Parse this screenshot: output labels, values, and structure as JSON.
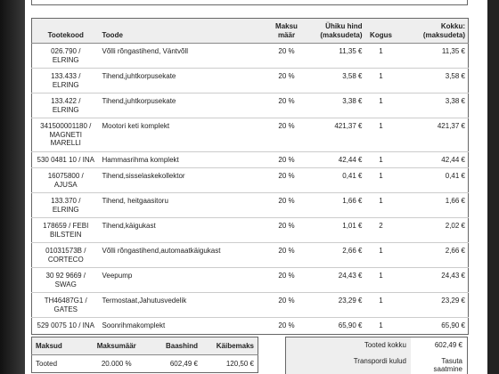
{
  "table": {
    "headers": [
      [
        "Tootekood"
      ],
      [
        "Toode"
      ],
      [
        "Maksu",
        "määr"
      ],
      [
        "Ühiku hind",
        "(maksudeta)"
      ],
      [
        "Kogus"
      ],
      [
        "Kokku:",
        "(maksudeta)"
      ]
    ],
    "rows": [
      {
        "code": [
          "026.790 /",
          "ELRING"
        ],
        "name": "Võlli rõngastihend, Väntvõll",
        "tax": "20 %",
        "unit_price": "11,35 €",
        "qty": "1",
        "total": "11,35 €"
      },
      {
        "code": [
          "133.433 /",
          "ELRING"
        ],
        "name": "Tihend,juhtkorpusekate",
        "tax": "20 %",
        "unit_price": "3,58 €",
        "qty": "1",
        "total": "3,58 €"
      },
      {
        "code": [
          "133.422 /",
          "ELRING"
        ],
        "name": "Tihend,juhtkorpusekate",
        "tax": "20 %",
        "unit_price": "3,38 €",
        "qty": "1",
        "total": "3,38 €"
      },
      {
        "code": [
          "341500001180 /",
          "MAGNETI",
          "MARELLI"
        ],
        "name": "Mootori keti komplekt",
        "tax": "20 %",
        "unit_price": "421,37 €",
        "qty": "1",
        "total": "421,37 €"
      },
      {
        "code": [
          "530 0481 10 / INA"
        ],
        "name": "Hammasrihma komplekt",
        "tax": "20 %",
        "unit_price": "42,44 €",
        "qty": "1",
        "total": "42,44 €"
      },
      {
        "code": [
          "16075800 /",
          "AJUSA"
        ],
        "name": "Tihend,sisselaskekollektor",
        "tax": "20 %",
        "unit_price": "0,41 €",
        "qty": "1",
        "total": "0,41 €"
      },
      {
        "code": [
          "133.370 /",
          "ELRING"
        ],
        "name": "Tihend, heitgaasitoru",
        "tax": "20 %",
        "unit_price": "1,66 €",
        "qty": "1",
        "total": "1,66 €"
      },
      {
        "code": [
          "178659 / FEBI",
          "BILSTEIN"
        ],
        "name": "Tihend,käigukast",
        "tax": "20 %",
        "unit_price": "1,01 €",
        "qty": "2",
        "total": "2,02 €"
      },
      {
        "code": [
          "01031573B /",
          "CORTECO"
        ],
        "name": "Võlli rõngastihend,automaatkäigukast",
        "tax": "20 %",
        "unit_price": "2,66 €",
        "qty": "1",
        "total": "2,66 €"
      },
      {
        "code": [
          "30 92 9669 /",
          "SWAG"
        ],
        "name": "Veepump",
        "tax": "20 %",
        "unit_price": "24,43 €",
        "qty": "1",
        "total": "24,43 €"
      },
      {
        "code": [
          "TH46487G1 /",
          "GATES"
        ],
        "name": "Termostaat,Jahutusvedelik",
        "tax": "20 %",
        "unit_price": "23,29 €",
        "qty": "1",
        "total": "23,29 €"
      },
      {
        "code": [
          "529 0075 10 / INA"
        ],
        "name": "Soonrihmakomplekt",
        "tax": "20 %",
        "unit_price": "65,90 €",
        "qty": "1",
        "total": "65,90 €"
      }
    ]
  },
  "tax_summary": {
    "headers": [
      "Maksud",
      "Maksumäär",
      "Baashind",
      "Käibemaks"
    ],
    "rows": [
      [
        "Tooted",
        "20.000 %",
        "602,49 €",
        "120,50 €"
      ]
    ]
  },
  "totals": [
    {
      "label": "Tooted kokku",
      "value": [
        "602,49 €"
      ]
    },
    {
      "label": "Transpordi kulud",
      "value": [
        "Tasuta",
        "saatmine"
      ]
    }
  ]
}
